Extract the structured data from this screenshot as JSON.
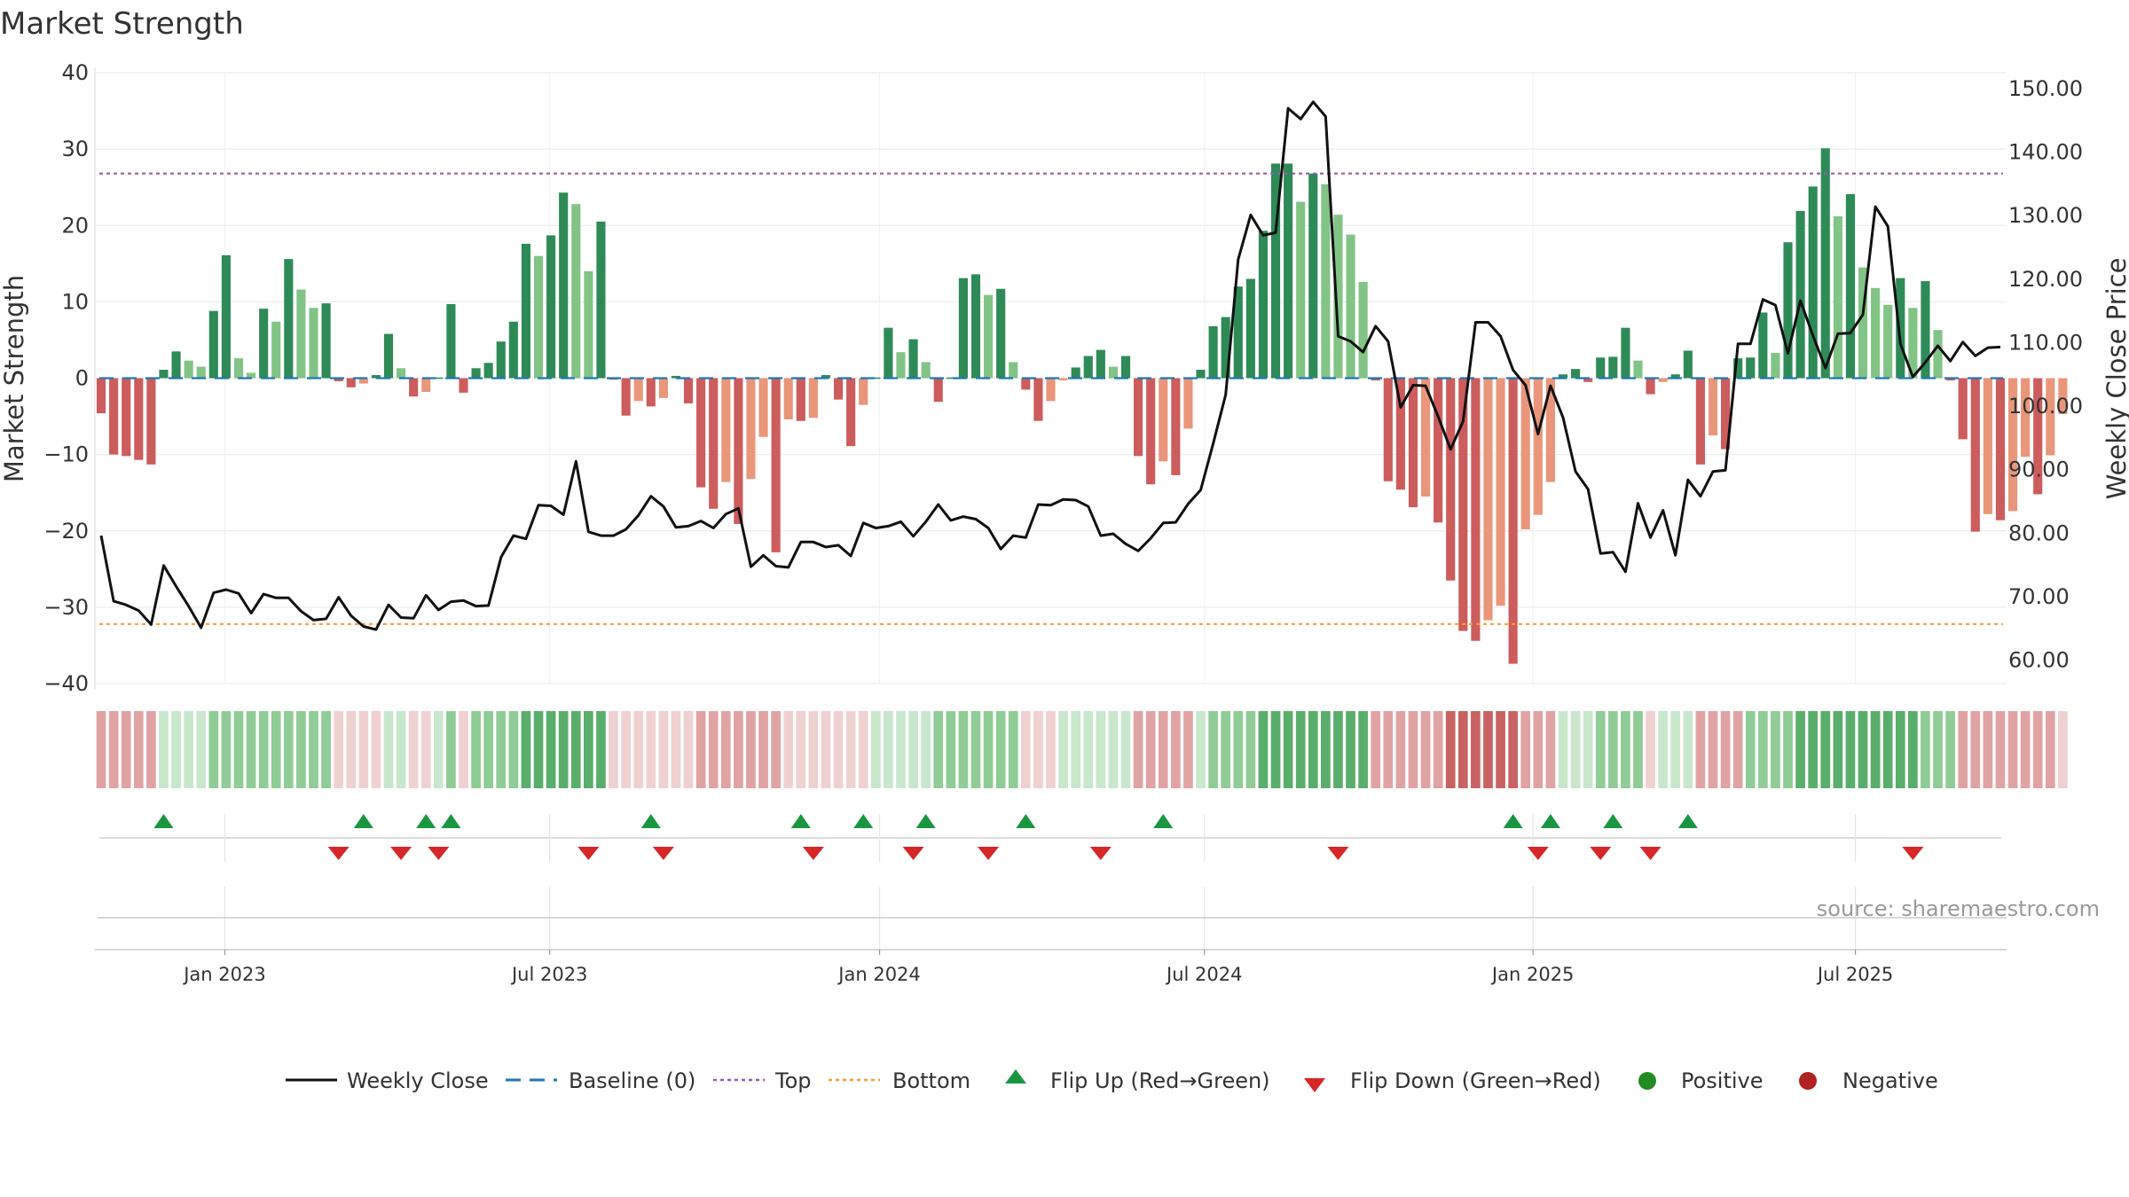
{
  "chart_data": {
    "type": "bar+line",
    "title": "Market Strength",
    "ylabel_left": "Market Strength",
    "ylabel_right": "Weekly Close Price",
    "ylim_left": [
      -40,
      40
    ],
    "ylim_right": [
      56.3,
      152.5
    ],
    "yticks_left": [
      40,
      30,
      20,
      10,
      0,
      -10,
      -20,
      -30,
      -40
    ],
    "ytick_labels_left": [
      "40",
      "30",
      "20",
      "10",
      "0",
      "−10",
      "−20",
      "−30",
      "−40"
    ],
    "yticks_right": [
      150,
      140,
      130,
      120,
      110,
      100,
      90,
      80,
      70,
      60
    ],
    "ytick_labels_right": [
      "150.00",
      "140.00",
      "130.00",
      "120.00",
      "110.00",
      "100.00",
      "90.00",
      "80.00",
      "70.00",
      "60.00"
    ],
    "x_index_range": [
      -0.5,
      152.5
    ],
    "x_ticks": [
      {
        "label": "Jan 2023",
        "index": 9.9
      },
      {
        "label": "Jul 2023",
        "index": 35.9
      },
      {
        "label": "Jan 2024",
        "index": 62.3
      },
      {
        "label": "Jul 2024",
        "index": 88.3
      },
      {
        "label": "Jan 2025",
        "index": 114.6
      },
      {
        "label": "Jul 2025",
        "index": 140.4
      }
    ],
    "top_level": 26.8,
    "bottom_level": -32.2,
    "strength": [
      -4.6,
      -10,
      -10.2,
      -10.7,
      -11.3,
      1.1,
      3.5,
      2.3,
      1.5,
      8.8,
      16.1,
      2.6,
      0.7,
      9.1,
      7.4,
      15.6,
      11.6,
      9.2,
      9.8,
      -0.4,
      -1.2,
      -0.7,
      0.4,
      5.8,
      1.3,
      -2.4,
      -1.8,
      0,
      9.7,
      -1.9,
      1.3,
      2,
      4.8,
      7.4,
      17.6,
      16,
      18.7,
      24.3,
      22.8,
      14,
      20.5,
      -0.2,
      -4.9,
      -3,
      -3.7,
      -2.6,
      0.3,
      -3.3,
      -14.3,
      -17.1,
      -13.6,
      -19.1,
      -13.2,
      -7.7,
      -22.8,
      -5.4,
      -5.6,
      -5.2,
      0.4,
      -2.8,
      -8.9,
      -3.5,
      0,
      6.6,
      3.4,
      5.1,
      2.1,
      -3.1,
      0,
      13.1,
      13.6,
      10.9,
      11.7,
      2.1,
      -1.5,
      -5.6,
      -3,
      -0.3,
      1.4,
      2.9,
      3.7,
      1.5,
      2.9,
      -10.2,
      -13.9,
      -10.9,
      -12.7,
      -6.6,
      1.1,
      6.8,
      8,
      12,
      13,
      19.3,
      28.1,
      28.1,
      23.1,
      26.8,
      25.4,
      21.4,
      18.8,
      12.6,
      -0.3,
      -13.5,
      -14.6,
      -16.9,
      -15.5,
      -18.9,
      -26.5,
      -33.1,
      -34.4,
      -31.7,
      -29.8,
      -37.4,
      -19.8,
      -17.9,
      -13.6,
      0.5,
      1.2,
      -0.5,
      2.7,
      2.8,
      6.6,
      2.3,
      -2.1,
      -0.5,
      0.5,
      3.6,
      -11.3,
      -7.5,
      -9.3,
      2.6,
      2.7,
      8.6,
      3.3,
      17.8,
      21.9,
      25.1,
      30.1,
      21.2,
      24.1,
      14.5,
      11.8,
      9.6,
      13.1,
      9.2,
      12.7,
      6.3,
      -0.3,
      -8,
      -20.1,
      -17.8,
      -18.6,
      -17.4,
      -10.3,
      -15.2,
      -10.1,
      -4.7
    ],
    "weekly_close": [
      79.6,
      69.3,
      68.7,
      67.8,
      65.6,
      74.9,
      71.6,
      68.5,
      65.1,
      70.6,
      71.1,
      70.5,
      67.4,
      70.4,
      69.8,
      69.8,
      67.7,
      66.3,
      66.5,
      69.9,
      67,
      65.3,
      64.8,
      68.7,
      66.7,
      66.6,
      70.2,
      67.9,
      69.2,
      69.4,
      68.5,
      68.6,
      76.2,
      79.6,
      79.1,
      84.4,
      84.3,
      82.9,
      91.3,
      80.2,
      79.6,
      79.6,
      80.6,
      82.8,
      85.8,
      84.2,
      80.9,
      81.1,
      81.9,
      80.8,
      83,
      83.9,
      74.7,
      76.5,
      74.8,
      74.6,
      78.6,
      78.6,
      77.8,
      78.1,
      76.4,
      81.6,
      80.8,
      81.1,
      81.8,
      79.5,
      81.8,
      84.5,
      82,
      82.6,
      82.2,
      80.8,
      77.5,
      79.6,
      79.3,
      84.5,
      84.4,
      85.3,
      85.2,
      84.2,
      79.6,
      79.9,
      78.3,
      77.2,
      79.2,
      81.6,
      81.7,
      84.6,
      86.8,
      94.1,
      101.8,
      123.1,
      130.1,
      126.9,
      127.3,
      146.9,
      145.2,
      147.9,
      145.6,
      111,
      110.2,
      108.5,
      112.6,
      110.2,
      99.8,
      103.3,
      103.2,
      98.4,
      93.2,
      97.6,
      113.2,
      113.2,
      111,
      105.7,
      103.3,
      95.6,
      103.2,
      98.2,
      89.7,
      86.9,
      76.8,
      77,
      73.9,
      84.7,
      79.3,
      83.6,
      76.5,
      88.4,
      85.8,
      89.7,
      89.9,
      109.8,
      109.8,
      116.8,
      115.9,
      108.3,
      116.6,
      111.1,
      106,
      111.4,
      111.5,
      114.4,
      131.4,
      128.3,
      109.8,
      104.6,
      106.9,
      109.5,
      107.1,
      110.1,
      107.9,
      109.2,
      109.3
    ],
    "band_sentiment": [
      -2,
      -2,
      -2,
      -2,
      -2,
      1,
      1,
      1,
      1,
      2,
      2,
      2,
      2,
      2,
      2,
      2,
      2,
      2,
      2,
      -1,
      -1,
      -1,
      -1,
      1,
      1,
      -1,
      -1,
      1,
      2,
      -1,
      2,
      2,
      2,
      2,
      3,
      3,
      3,
      3,
      3,
      3,
      3,
      -1,
      -1,
      -1,
      -1,
      -1,
      -1,
      -1,
      -2,
      -2,
      -2,
      -2,
      -2,
      -2,
      -2,
      -1,
      -1,
      -1,
      -1,
      -1,
      -1,
      -1,
      1,
      1,
      1,
      1,
      1,
      2,
      2,
      2,
      2,
      2,
      2,
      2,
      -1,
      -1,
      -1,
      1,
      1,
      1,
      1,
      1,
      1,
      -2,
      -2,
      -2,
      -2,
      -2,
      1,
      2,
      2,
      2,
      2,
      3,
      3,
      3,
      3,
      3,
      3,
      3,
      3,
      3,
      -2,
      -2,
      -2,
      -2,
      -2,
      -2,
      -3,
      -3,
      -3,
      -3,
      -3,
      -3,
      -2,
      -2,
      -2,
      1,
      1,
      1,
      2,
      2,
      2,
      2,
      -1,
      1,
      1,
      1,
      -2,
      -2,
      -2,
      -2,
      2,
      2,
      2,
      2,
      3,
      3,
      3,
      3,
      3,
      3,
      3,
      3,
      3,
      3,
      2,
      2,
      2,
      -2,
      -2,
      -2,
      -2,
      -2,
      -2,
      -2,
      -2,
      -1
    ],
    "flip_up_indices": [
      5,
      21,
      26,
      28,
      44,
      56,
      61,
      66,
      74,
      85,
      113,
      116,
      121,
      127
    ],
    "flip_down_indices": [
      19,
      24,
      27,
      39,
      45,
      57,
      65,
      71,
      80,
      99,
      115,
      120,
      124,
      145
    ],
    "legend": [
      "Weekly Close",
      "Baseline (0)",
      "Top",
      "Bottom",
      "Flip Up (Red→Green)",
      "Flip Down (Green→Red)",
      "Positive",
      "Negative"
    ],
    "source_note": "source: sharemaestro.com",
    "colors": {
      "pos_strong": "#2e8b57",
      "pos_light": "#82c485",
      "neg_strong": "#cd5c5c",
      "neg_light": "#e9967a",
      "line": "#111111",
      "baseline": "#1f77b4",
      "top": "#9b59b6",
      "bottom": "#ff9933",
      "flip_up": "#1a9641",
      "flip_down": "#d62728",
      "positive": "#228b22",
      "negative": "#b22222"
    }
  }
}
